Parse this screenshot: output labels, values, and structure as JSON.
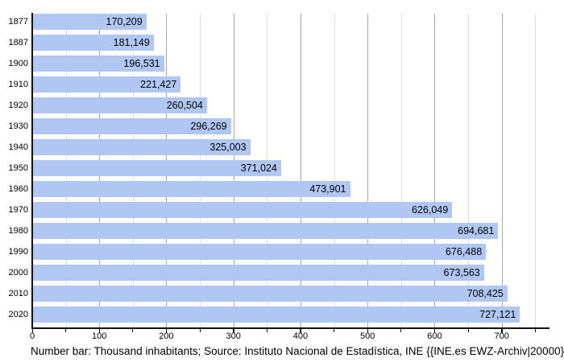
{
  "chart_data": {
    "type": "bar",
    "orientation": "horizontal",
    "title": "",
    "xlabel": "",
    "ylabel": "",
    "unit": "thousand inhabitants",
    "categories": [
      "1877",
      "1887",
      "1900",
      "1910",
      "1920",
      "1930",
      "1940",
      "1950",
      "1960",
      "1970",
      "1980",
      "1990",
      "2000",
      "2010",
      "2020"
    ],
    "values": [
      170209,
      181149,
      196531,
      221427,
      260504,
      296269,
      325003,
      371024,
      473901,
      626049,
      694681,
      676488,
      673563,
      708425,
      727121
    ],
    "value_labels": [
      "170,209",
      "181,149",
      "196,531",
      "221,427",
      "260,504",
      "296,269",
      "325,003",
      "371,024",
      "473,901",
      "626,049",
      "694,681",
      "676,488",
      "673,563",
      "708,425",
      "727,121"
    ],
    "axis": {
      "x_min_thousand": 0,
      "x_max_thousand": 770,
      "x_major_step_thousand": 100,
      "x_minor_step_thousand": 50,
      "x_tick_labels": [
        "0",
        "100",
        "200",
        "300",
        "400",
        "500",
        "600",
        "700"
      ]
    },
    "grid": true,
    "legend": null,
    "caption": "Number bar: Thousand inhabitants; Source: Instituto Nacional de Estadística, INE {{INE.es EWZ-Archiv|20000}}",
    "colors": {
      "bar": "#b0c7f4",
      "grid_major": "#a8a8a8",
      "grid_minor": "#dedede",
      "axis": "#111111",
      "text": "#000000",
      "background": "#ffffff"
    }
  }
}
